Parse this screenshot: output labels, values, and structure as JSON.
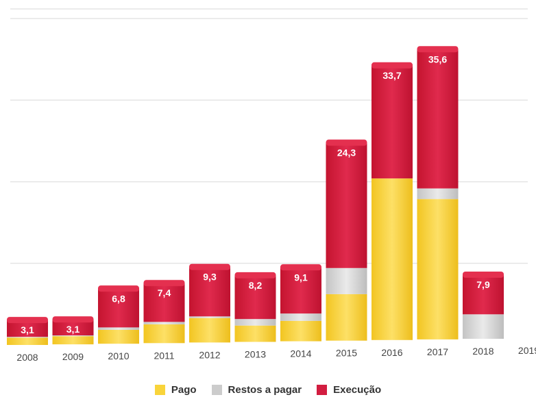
{
  "chart_data": {
    "type": "bar",
    "stacked": true,
    "categories": [
      "2008",
      "2009",
      "2010",
      "2011",
      "2012",
      "2013",
      "2014",
      "2015",
      "2016",
      "2017",
      "2018",
      "2019"
    ],
    "series": [
      {
        "name": "Pago",
        "color": "#F9D43A",
        "values": [
          0.9,
          1.0,
          1.7,
          2.3,
          3.0,
          2.0,
          2.5,
          5.7,
          19.8,
          17.2,
          0,
          null
        ]
      },
      {
        "name": "Restos a pagar",
        "color": "#CCCCCC",
        "values": [
          0.1,
          0.1,
          0.3,
          0.3,
          0.2,
          0.8,
          0.9,
          3.2,
          0,
          1.3,
          3.0,
          null
        ]
      },
      {
        "name": "Execução",
        "color": "#D21D40",
        "values": [
          2.1,
          2.0,
          4.8,
          4.8,
          6.1,
          5.4,
          5.7,
          15.4,
          13.9,
          17.1,
          4.9,
          null
        ]
      }
    ],
    "totals": [
      "3,1",
      "3,1",
      "6,8",
      "7,4",
      "9,3",
      "8,2",
      "9,1",
      "24,3",
      "33,7",
      "35,6",
      "7,9",
      ""
    ],
    "ylim": [
      0,
      37
    ],
    "grid": true,
    "legend_position": "bottom-center"
  },
  "legend": [
    {
      "label": "Pago",
      "color": "#F9D43A"
    },
    {
      "label": "Restos a pagar",
      "color": "#CCCCCC"
    },
    {
      "label": "Execução",
      "color": "#D21D40"
    }
  ]
}
